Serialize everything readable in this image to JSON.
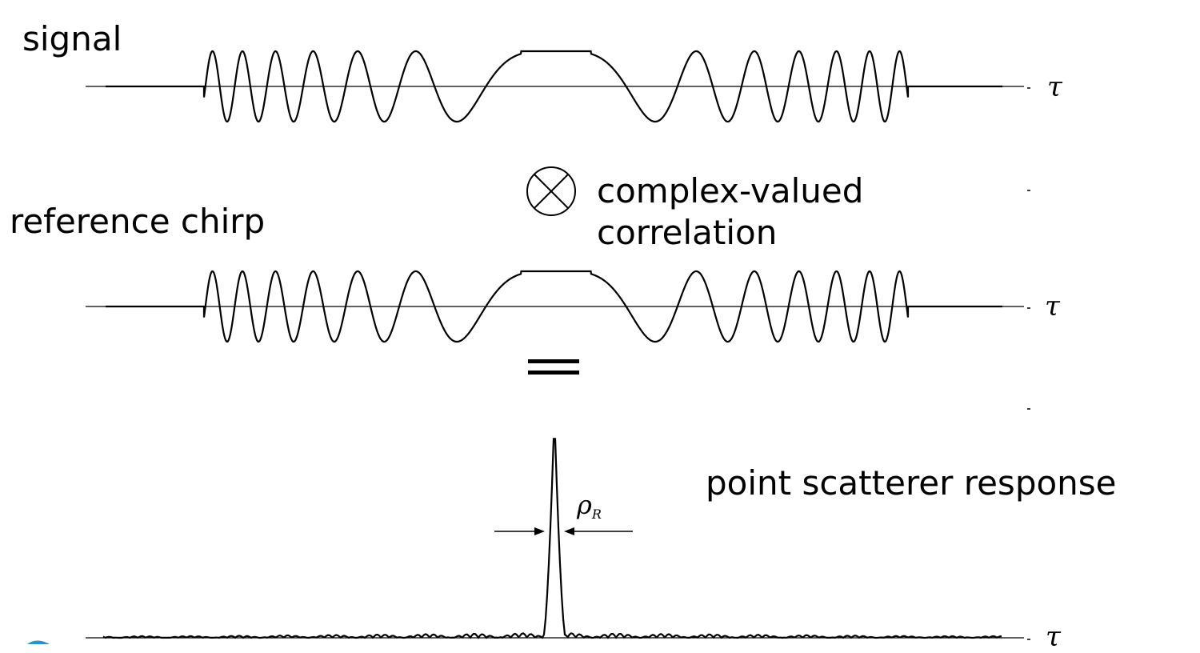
{
  "labels": {
    "signal": "signal",
    "reference": "reference chirp",
    "operation_line1": "complex-valued",
    "operation_line2": "correlation",
    "response": "point scatterer response",
    "tau": "τ",
    "rho": "ρ",
    "rho_sub": "R"
  },
  "colors": {
    "curve": "#000000",
    "axis": "#000000",
    "corner_mark": "#2f8fc7"
  },
  "icons": {
    "operator": "circled-times-icon",
    "equals": "equals-icon",
    "resolution_arrows": "converging-arrows-icon"
  }
}
